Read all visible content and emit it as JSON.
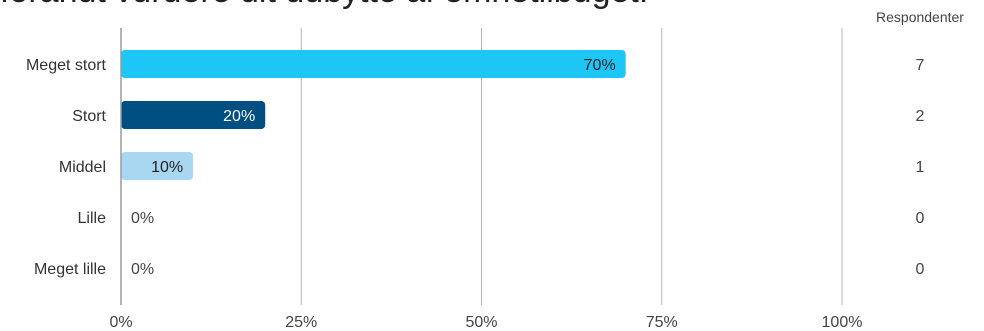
{
  "title_fragment": "forandt vurdere dit udbytte af emnetilbuget:",
  "respondents_header": "Respondenter",
  "chart_data": {
    "type": "bar",
    "orientation": "horizontal",
    "categories": [
      "Meget stort",
      "Stort",
      "Middel",
      "Lille",
      "Meget lille"
    ],
    "values": [
      70,
      20,
      10,
      0,
      0
    ],
    "value_labels": [
      "70%",
      "20%",
      "10%",
      "0%",
      "0%"
    ],
    "respondents": [
      "7",
      "2",
      "1",
      "0",
      "0"
    ],
    "colors": [
      "#1ec6f5",
      "#004f83",
      "#a9d7f2",
      "#a9d7f2",
      "#a9d7f2"
    ],
    "label_colors": [
      "#222222",
      "#ffffff",
      "#222222",
      "#444444",
      "#444444"
    ],
    "xlim": [
      0,
      100
    ],
    "xticks": [
      0,
      25,
      50,
      75,
      100
    ],
    "xtick_labels": [
      "0%",
      "25%",
      "50%",
      "75%",
      "100%"
    ],
    "grid": true
  }
}
